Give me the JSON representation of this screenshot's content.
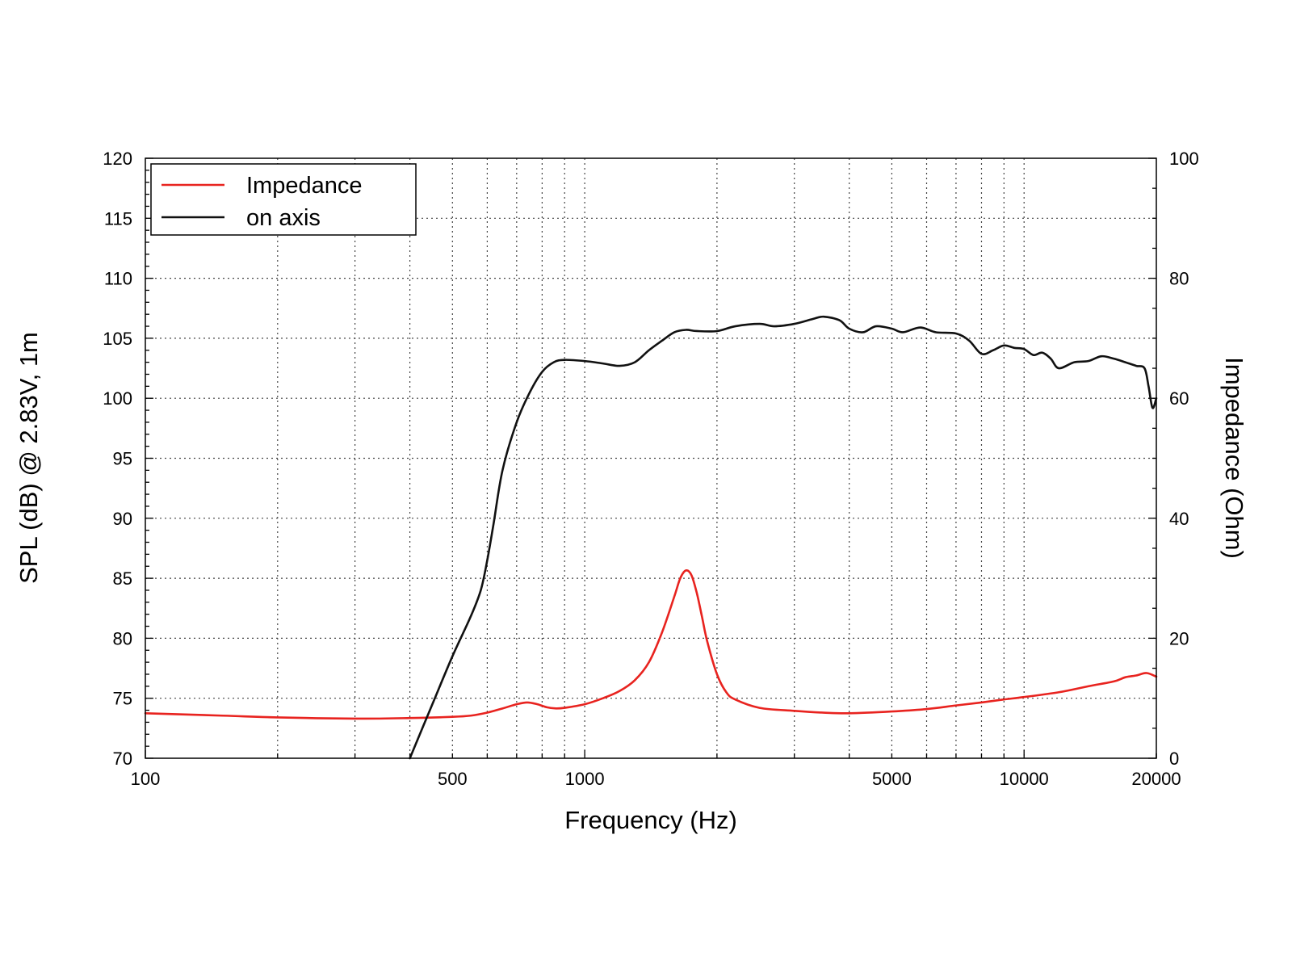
{
  "chart_data": {
    "type": "line",
    "xlabel": "Frequency (Hz)",
    "ylabel": "SPL (dB) @ 2.83V, 1m",
    "y2label": "Impedance (Ohm)",
    "xscale": "log",
    "xlim": [
      100,
      20000
    ],
    "ylim": [
      70,
      120
    ],
    "y2lim": [
      0,
      100
    ],
    "grid": true,
    "legend_position": "top-left",
    "x_tick_labels": [
      {
        "value": 100,
        "label": "100"
      },
      {
        "value": 500,
        "label": "500"
      },
      {
        "value": 1000,
        "label": "1000"
      },
      {
        "value": 5000,
        "label": "5000"
      },
      {
        "value": 10000,
        "label": "10000"
      },
      {
        "value": 20000,
        "label": "20000"
      }
    ],
    "x_gridlines": [
      200,
      300,
      400,
      500,
      600,
      700,
      800,
      900,
      1000,
      2000,
      3000,
      4000,
      5000,
      6000,
      7000,
      8000,
      9000,
      10000
    ],
    "y_ticks": [
      70,
      75,
      80,
      85,
      90,
      95,
      100,
      105,
      110,
      115,
      120
    ],
    "y2_ticks": [
      0,
      20,
      40,
      60,
      80,
      100
    ],
    "series": [
      {
        "name": "Impedance",
        "axis": "right",
        "color": "#e8231f",
        "points": [
          [
            100,
            7.5
          ],
          [
            150,
            7.1
          ],
          [
            200,
            6.8
          ],
          [
            300,
            6.6
          ],
          [
            400,
            6.7
          ],
          [
            500,
            6.9
          ],
          [
            550,
            7.1
          ],
          [
            600,
            7.6
          ],
          [
            650,
            8.3
          ],
          [
            700,
            9.0
          ],
          [
            740,
            9.3
          ],
          [
            780,
            9.0
          ],
          [
            820,
            8.5
          ],
          [
            860,
            8.3
          ],
          [
            900,
            8.4
          ],
          [
            1000,
            9.0
          ],
          [
            1100,
            10.0
          ],
          [
            1200,
            11.2
          ],
          [
            1300,
            13.0
          ],
          [
            1400,
            16.0
          ],
          [
            1500,
            21.0
          ],
          [
            1600,
            27.0
          ],
          [
            1650,
            30.0
          ],
          [
            1700,
            31.3
          ],
          [
            1750,
            30.5
          ],
          [
            1800,
            27.5
          ],
          [
            1850,
            23.5
          ],
          [
            1900,
            19.5
          ],
          [
            2000,
            14.0
          ],
          [
            2100,
            11.0
          ],
          [
            2200,
            9.8
          ],
          [
            2500,
            8.4
          ],
          [
            3000,
            7.9
          ],
          [
            3500,
            7.6
          ],
          [
            4000,
            7.5
          ],
          [
            5000,
            7.8
          ],
          [
            6000,
            8.2
          ],
          [
            7000,
            8.8
          ],
          [
            8000,
            9.3
          ],
          [
            9000,
            9.8
          ],
          [
            10000,
            10.2
          ],
          [
            12000,
            11.0
          ],
          [
            14000,
            12.0
          ],
          [
            16000,
            12.8
          ],
          [
            17000,
            13.5
          ],
          [
            18000,
            13.8
          ],
          [
            19000,
            14.2
          ],
          [
            20000,
            13.6
          ]
        ]
      },
      {
        "name": "on axis",
        "axis": "left",
        "color": "#111111",
        "points": [
          [
            400,
            70.0
          ],
          [
            450,
            74.5
          ],
          [
            500,
            78.5
          ],
          [
            550,
            81.8
          ],
          [
            580,
            84.0
          ],
          [
            600,
            86.5
          ],
          [
            620,
            89.5
          ],
          [
            650,
            94.0
          ],
          [
            700,
            98.0
          ],
          [
            750,
            100.5
          ],
          [
            800,
            102.2
          ],
          [
            850,
            103.0
          ],
          [
            900,
            103.2
          ],
          [
            1000,
            103.1
          ],
          [
            1100,
            102.9
          ],
          [
            1200,
            102.7
          ],
          [
            1300,
            103.0
          ],
          [
            1400,
            104.0
          ],
          [
            1500,
            104.8
          ],
          [
            1600,
            105.5
          ],
          [
            1700,
            105.7
          ],
          [
            1800,
            105.6
          ],
          [
            2000,
            105.6
          ],
          [
            2200,
            106.0
          ],
          [
            2500,
            106.2
          ],
          [
            2700,
            106.0
          ],
          [
            3000,
            106.2
          ],
          [
            3300,
            106.6
          ],
          [
            3500,
            106.8
          ],
          [
            3800,
            106.5
          ],
          [
            4000,
            105.8
          ],
          [
            4300,
            105.5
          ],
          [
            4600,
            106.0
          ],
          [
            5000,
            105.8
          ],
          [
            5300,
            105.5
          ],
          [
            5800,
            105.9
          ],
          [
            6300,
            105.5
          ],
          [
            7000,
            105.4
          ],
          [
            7500,
            104.8
          ],
          [
            8000,
            103.7
          ],
          [
            8500,
            104.0
          ],
          [
            9000,
            104.4
          ],
          [
            9500,
            104.2
          ],
          [
            10000,
            104.1
          ],
          [
            10500,
            103.6
          ],
          [
            11000,
            103.8
          ],
          [
            11500,
            103.3
          ],
          [
            12000,
            102.5
          ],
          [
            13000,
            103.0
          ],
          [
            14000,
            103.1
          ],
          [
            15000,
            103.5
          ],
          [
            16000,
            103.3
          ],
          [
            17000,
            103.0
          ],
          [
            18000,
            102.7
          ],
          [
            18800,
            102.5
          ],
          [
            19200,
            101.0
          ],
          [
            19600,
            99.2
          ],
          [
            20000,
            100.0
          ]
        ]
      }
    ]
  }
}
